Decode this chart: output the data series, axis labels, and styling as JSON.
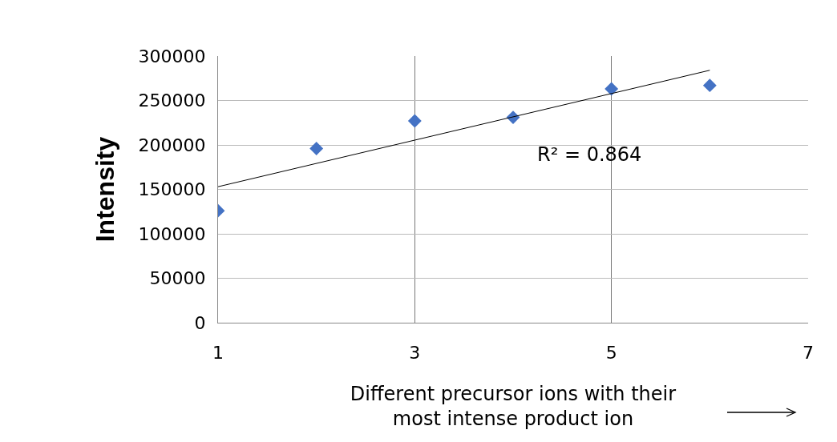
{
  "chart_data": {
    "type": "scatter",
    "xlabel": "Different precursor ions with their most intense product ion",
    "ylabel": "Intensity",
    "x": [
      1,
      2,
      3,
      4,
      5,
      6
    ],
    "series": [
      {
        "color": "#4472c4",
        "marker": "diamond",
        "values": [
          126000,
          196000,
          227000,
          231000,
          263000,
          267000
        ]
      },
      {
        "type": "line",
        "color": "#000000",
        "marker": "none",
        "x": [
          1,
          6
        ],
        "values": [
          153000,
          284000
        ]
      }
    ],
    "annotations": [
      "R² = 0.864"
    ],
    "xlim": [
      1,
      7
    ],
    "xticks": [
      1,
      3,
      5,
      7
    ],
    "ylim": [
      0,
      300000
    ],
    "yticks": [
      0,
      50000,
      100000,
      150000,
      200000,
      250000,
      300000
    ],
    "grid": true,
    "legend": false
  }
}
